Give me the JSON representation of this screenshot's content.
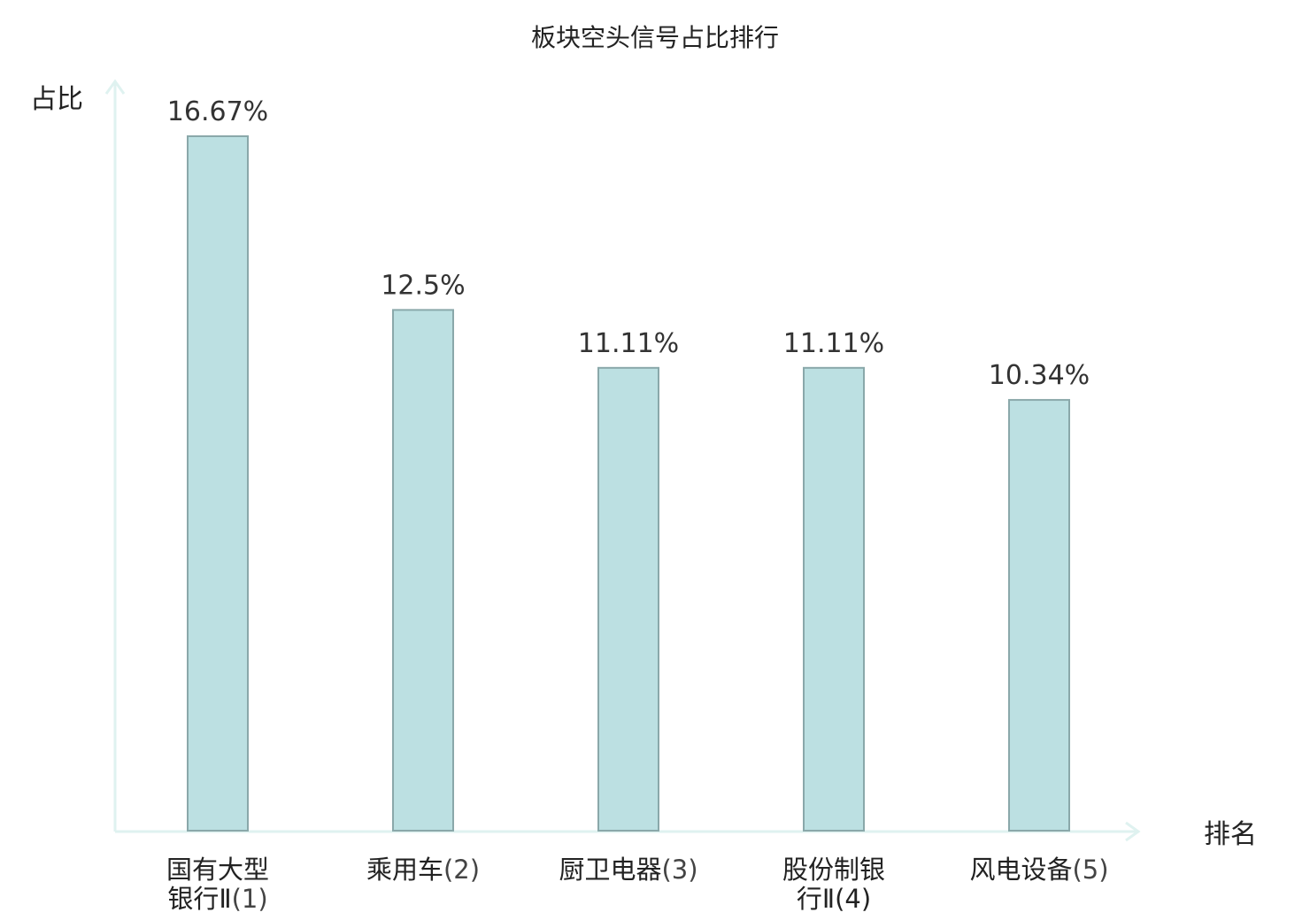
{
  "chart_data": {
    "type": "bar",
    "title": "板块空头信号占比排行",
    "xlabel": "排名",
    "ylabel": "占比",
    "categories": [
      {
        "lines": [
          "国有大型",
          "银行Ⅱ"
        ],
        "rank": "(1)",
        "highlight": false
      },
      {
        "lines": [
          "乘用车"
        ],
        "rank": "(2)",
        "highlight": false
      },
      {
        "lines": [
          "厨卫电器"
        ],
        "rank": "(3)",
        "highlight": false
      },
      {
        "lines": [
          "股份制银",
          "行Ⅱ"
        ],
        "rank": "(4)",
        "highlight": true
      },
      {
        "lines": [
          "风电设备"
        ],
        "rank": "(5)",
        "highlight": false
      }
    ],
    "values": [
      16.67,
      12.5,
      11.11,
      11.11,
      10.34
    ],
    "value_labels": [
      "16.67%",
      "12.5%",
      "11.11%",
      "11.11%",
      "10.34%"
    ],
    "ylim": [
      0,
      16.67
    ],
    "grid": false,
    "legend": "none"
  },
  "colors": {
    "bar_fill": "#bce0e2",
    "bar_stroke": "#8aa8aa",
    "axis": "#dff2f0",
    "text": "#222222",
    "highlight": "#d61a1a"
  }
}
